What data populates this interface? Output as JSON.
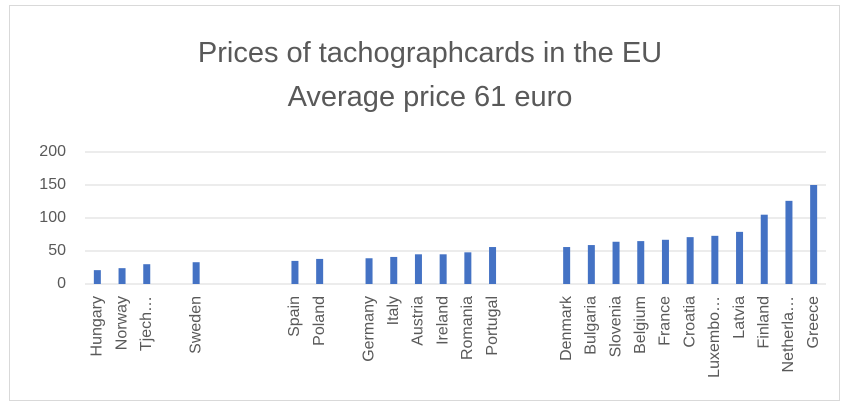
{
  "chart_data": {
    "type": "bar",
    "title": "Prices of tachographcards in the EU",
    "subtitle": "Average price 61 euro",
    "categories": [
      "Hungary",
      "Norway",
      "Tjech…",
      null,
      "Sweden",
      null,
      null,
      null,
      "Spain",
      "Poland",
      null,
      "Germany",
      "Italy",
      "Austria",
      "Ireland",
      "Romania",
      "Portugal",
      null,
      null,
      "Denmark",
      "Bulgaria",
      "Slovenia",
      "Belgium",
      "France",
      "Croatia",
      "Luxembo…",
      "Latvia",
      "Finland",
      "Netherla…",
      "Greece"
    ],
    "values": [
      21,
      24,
      30,
      null,
      33,
      null,
      null,
      null,
      35,
      38,
      null,
      39,
      41,
      45,
      45,
      48,
      56,
      null,
      null,
      56,
      59,
      64,
      65,
      67,
      71,
      73,
      79,
      105,
      126,
      150
    ],
    "color": "#4472c4",
    "ylim": [
      0,
      200
    ],
    "yticks": [
      0,
      50,
      100,
      150,
      200
    ],
    "grid": true
  }
}
